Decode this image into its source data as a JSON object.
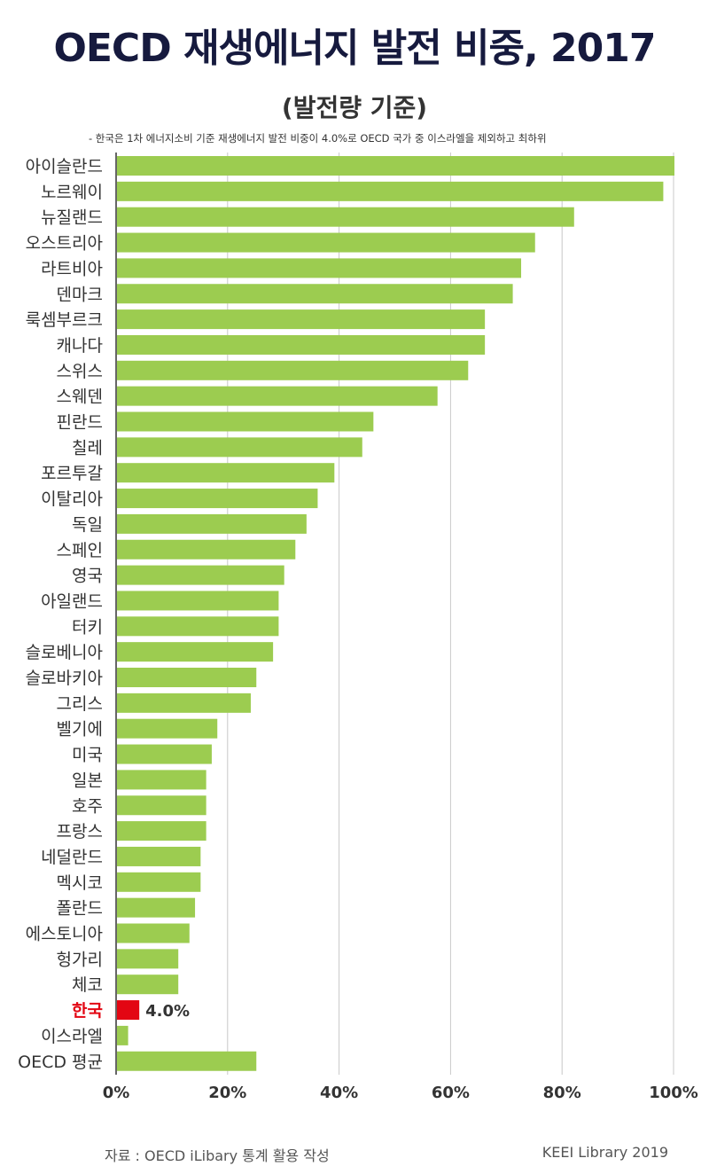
{
  "header": {
    "title": "OECD 재생에너지 발전 비중, 2017",
    "subtitle": "(발전량 기준)",
    "note": "- 한국은 1차 에너지소비 기준 재생에너지 발전 비중이 4.0%로 OECD 국가 중 이스라엘을 제외하고 최하위"
  },
  "footer": {
    "source": "자료 : OECD iLibary  통계 활용 작성",
    "credit": "KEEI Library 2019"
  },
  "colors": {
    "bar": "#9ccc50",
    "highlight": "#e30613",
    "grid": "#c8c8c8",
    "axis": "#333333"
  },
  "chart_data": {
    "type": "bar",
    "orientation": "horizontal",
    "xlim": [
      0,
      100
    ],
    "x_ticks": [
      "0%",
      "20%",
      "40%",
      "60%",
      "80%",
      "100%"
    ],
    "grid": "vertical",
    "highlight_category": "한국",
    "highlight_label": "4.0%",
    "categories": [
      "아이슬란드",
      "노르웨이",
      "뉴질랜드",
      "오스트리아",
      "라트비아",
      "덴마크",
      "룩셈부르크",
      "캐나다",
      "스위스",
      "스웨덴",
      "핀란드",
      "칠레",
      "포르투갈",
      "이탈리아",
      "독일",
      "스페인",
      "영국",
      "아일랜드",
      "터키",
      "슬로베니아",
      "슬로바키아",
      "그리스",
      "벨기에",
      "미국",
      "일본",
      "호주",
      "프랑스",
      "네덜란드",
      "멕시코",
      "폴란드",
      "에스토니아",
      "헝가리",
      "체코",
      "한국",
      "이스라엘",
      "OECD 평균"
    ],
    "values": [
      100,
      98,
      82,
      75,
      72.5,
      71,
      66,
      66,
      63,
      57.5,
      46,
      44,
      39,
      36,
      34,
      32,
      30,
      29,
      29,
      28,
      25,
      24,
      18,
      17,
      16,
      16,
      16,
      15,
      15,
      14,
      13,
      11,
      11,
      4.0,
      2,
      25
    ]
  }
}
